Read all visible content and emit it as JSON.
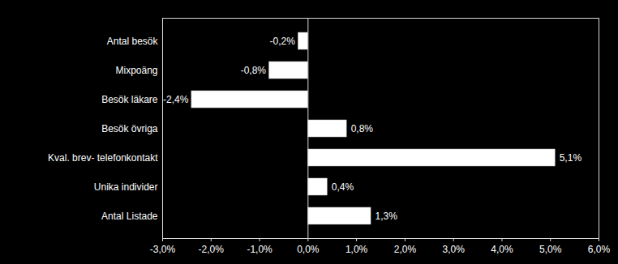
{
  "chart_data": {
    "type": "bar",
    "orientation": "horizontal",
    "categories": [
      "Antal besök",
      "Mixpoäng",
      "Besök läkare",
      "Besök övriga",
      "Kval. brev- telefonkontakt",
      "Unika individer",
      "Antal Listade"
    ],
    "values": [
      -0.2,
      -0.8,
      -2.4,
      0.8,
      5.1,
      0.4,
      1.3
    ],
    "value_labels": [
      "-0,2%",
      "-0,8%",
      "-2,4%",
      "0,8%",
      "5,1%",
      "0,4%",
      "1,3%"
    ],
    "data_labels": true,
    "color": "#ffffff",
    "xlim": [
      -3,
      6
    ],
    "xticks": [
      {
        "value": -3,
        "label": "-3,0%"
      },
      {
        "value": -2,
        "label": "-2,0%"
      },
      {
        "value": -1,
        "label": "-1,0%"
      },
      {
        "value": 0,
        "label": "0,0%"
      },
      {
        "value": 1,
        "label": "1,0%"
      },
      {
        "value": 2,
        "label": "2,0%"
      },
      {
        "value": 3,
        "label": "3,0%"
      },
      {
        "value": 4,
        "label": "4,0%"
      },
      {
        "value": 5,
        "label": "5,0%"
      },
      {
        "value": 6,
        "label": "6,0%"
      }
    ],
    "grid": false
  }
}
